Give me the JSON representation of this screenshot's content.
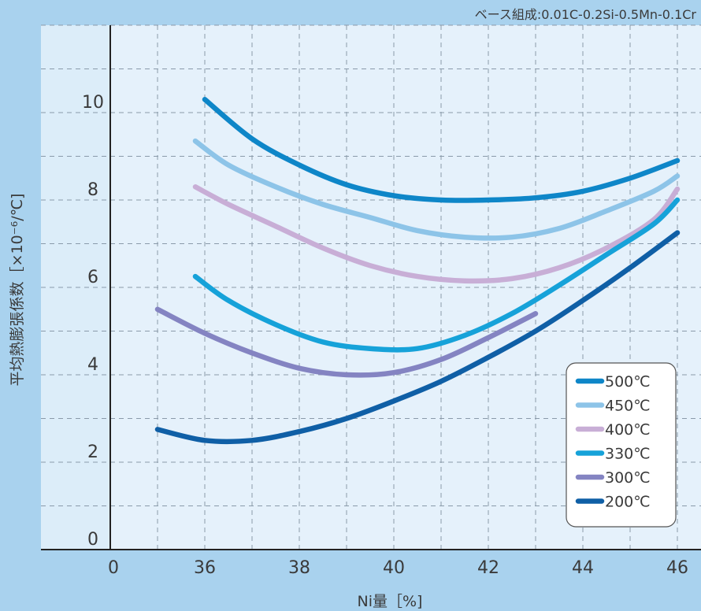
{
  "chart_data": {
    "type": "line",
    "title": "",
    "note": "ベース組成:0.01C-0.2Si-0.5Mn-0.1Cr",
    "xlabel": "Ni量［%]",
    "ylabel": "平均熱膨張係数［×10⁻⁶/℃]",
    "x_ticks": [
      "0",
      "36",
      "38",
      "40",
      "42",
      "44",
      "46"
    ],
    "y_ticks": [
      "0",
      "2",
      "4",
      "6",
      "8",
      "10"
    ],
    "xlim": [
      34,
      46.5
    ],
    "ylim": [
      0,
      12
    ],
    "grid": true,
    "legend_position": "bottom-right",
    "series": [
      {
        "name": "500℃",
        "color": "#0e86c8",
        "points": [
          [
            36,
            10.3
          ],
          [
            37,
            9.4
          ],
          [
            38,
            8.8
          ],
          [
            39,
            8.35
          ],
          [
            40,
            8.1
          ],
          [
            41,
            8.0
          ],
          [
            42,
            8.0
          ],
          [
            43,
            8.05
          ],
          [
            44,
            8.2
          ],
          [
            45,
            8.5
          ],
          [
            46,
            8.9
          ]
        ]
      },
      {
        "name": "450℃",
        "color": "#8dc4e8",
        "points": [
          [
            35.8,
            9.35
          ],
          [
            36.5,
            8.8
          ],
          [
            37.5,
            8.3
          ],
          [
            38.5,
            7.9
          ],
          [
            39.5,
            7.6
          ],
          [
            40.5,
            7.3
          ],
          [
            41.5,
            7.15
          ],
          [
            42.5,
            7.15
          ],
          [
            43.5,
            7.35
          ],
          [
            44.5,
            7.75
          ],
          [
            45.5,
            8.2
          ],
          [
            46,
            8.55
          ]
        ]
      },
      {
        "name": "400℃",
        "color": "#c8aed6",
        "points": [
          [
            35.8,
            8.3
          ],
          [
            36.5,
            7.9
          ],
          [
            37.5,
            7.4
          ],
          [
            38.5,
            6.9
          ],
          [
            39.5,
            6.5
          ],
          [
            40.5,
            6.25
          ],
          [
            41.5,
            6.15
          ],
          [
            42.5,
            6.2
          ],
          [
            43.5,
            6.45
          ],
          [
            44.5,
            6.9
          ],
          [
            45.5,
            7.55
          ],
          [
            46,
            8.25
          ]
        ]
      },
      {
        "name": "330℃",
        "color": "#16a2d9",
        "points": [
          [
            35.8,
            6.25
          ],
          [
            36.5,
            5.7
          ],
          [
            37.5,
            5.15
          ],
          [
            38.5,
            4.75
          ],
          [
            39.5,
            4.6
          ],
          [
            40.5,
            4.6
          ],
          [
            41.5,
            4.9
          ],
          [
            42.5,
            5.4
          ],
          [
            43.5,
            6.05
          ],
          [
            44.5,
            6.75
          ],
          [
            45.5,
            7.45
          ],
          [
            46,
            8.0
          ]
        ]
      },
      {
        "name": "300℃",
        "color": "#8484c2",
        "points": [
          [
            35,
            5.5
          ],
          [
            36,
            4.95
          ],
          [
            37,
            4.5
          ],
          [
            38,
            4.15
          ],
          [
            39,
            4.0
          ],
          [
            40,
            4.05
          ],
          [
            41,
            4.35
          ],
          [
            42,
            4.85
          ],
          [
            43,
            5.4
          ]
        ]
      },
      {
        "name": "200℃",
        "color": "#0f5fa6",
        "points": [
          [
            35,
            2.75
          ],
          [
            36,
            2.5
          ],
          [
            37,
            2.5
          ],
          [
            38,
            2.7
          ],
          [
            39,
            3.0
          ],
          [
            40,
            3.4
          ],
          [
            41,
            3.85
          ],
          [
            42,
            4.4
          ],
          [
            43,
            5.0
          ],
          [
            44,
            5.7
          ],
          [
            45,
            6.45
          ],
          [
            46,
            7.25
          ]
        ]
      }
    ]
  }
}
